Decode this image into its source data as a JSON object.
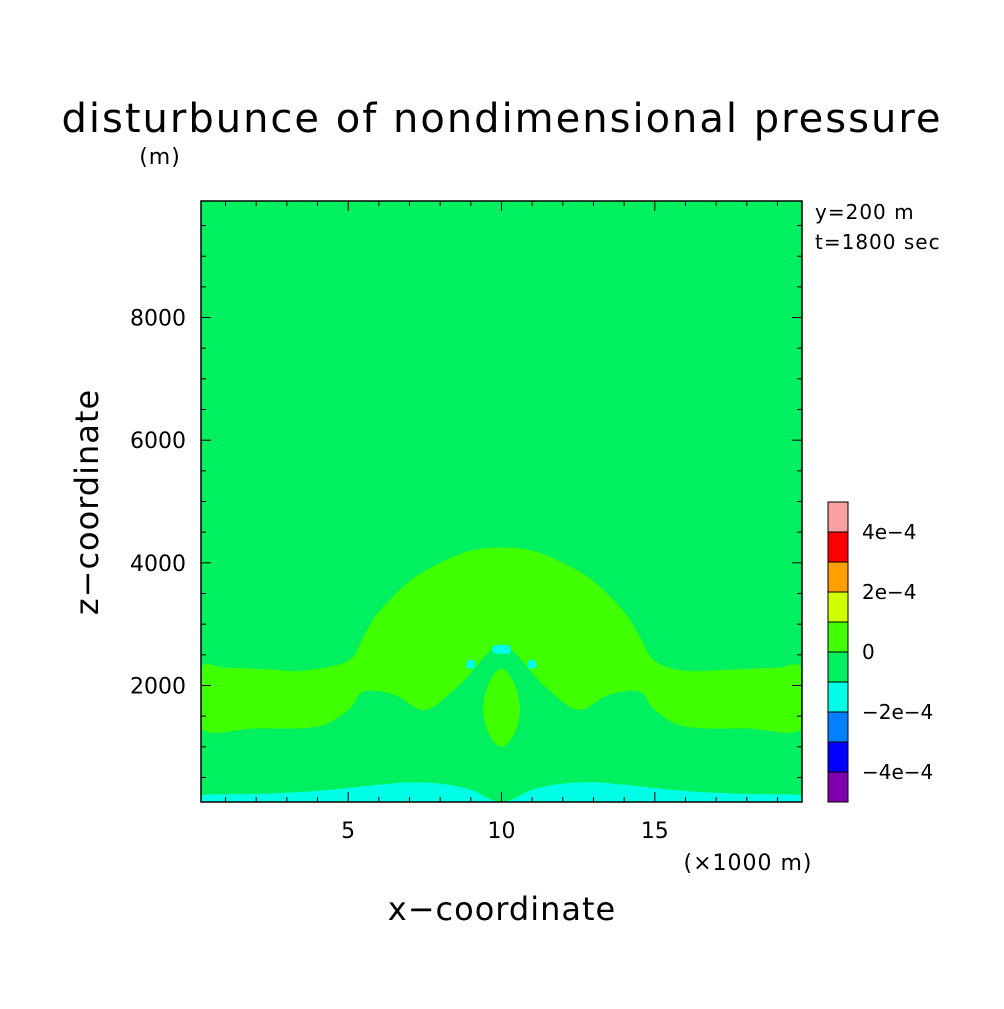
{
  "chart_data": {
    "type": "heatmap",
    "title": "disturbunce of nondimensional pressure",
    "yunit": "(m)",
    "xunit": "(×1000 m)",
    "info": [
      "y=200 m",
      "t=1800 sec"
    ],
    "xlabel": "x−coordinate",
    "ylabel": "z−coordinate",
    "xlim": [
      0.2,
      19.8
    ],
    "ylim": [
      100,
      9900
    ],
    "xticks": [
      5,
      10,
      15
    ],
    "xtick_labels": [
      "5",
      "10",
      "15"
    ],
    "yticks": [
      2000,
      4000,
      6000,
      8000
    ],
    "ytick_labels": [
      "2000",
      "4000",
      "6000",
      "8000"
    ],
    "colorbar": {
      "levels": [
        -0.0005,
        -0.0004,
        -0.0003,
        -0.0002,
        -0.0001,
        0,
        0.0001,
        0.0002,
        0.0003,
        0.0004,
        0.0005
      ],
      "colors": [
        "#7f00b0",
        "#0000ff",
        "#0080ff",
        "#00ffe6",
        "#00f060",
        "#40ff00",
        "#d0ff00",
        "#ffa000",
        "#ff0000",
        "#f8a0a0"
      ],
      "tick_labels": [
        {
          "level": -0.0004,
          "text": "−4e−4"
        },
        {
          "level": -0.0002,
          "text": "−2e−4"
        },
        {
          "level": 0,
          "text": "0"
        },
        {
          "level": 0.0002,
          "text": "2e−4"
        },
        {
          "level": 0.0004,
          "text": "4e−4"
        }
      ]
    },
    "background_color": "#00f060",
    "regions": [
      {
        "name": "positive-band",
        "range": [
          0,
          0.0001
        ],
        "color": "#40ff00",
        "outline": [
          [
            0.2,
            2270
          ],
          [
            1.0,
            2290
          ],
          [
            2.5,
            2260
          ],
          [
            3.5,
            2240
          ],
          [
            5.0,
            2400
          ],
          [
            5.5,
            2800
          ],
          [
            6.0,
            3200
          ],
          [
            7.0,
            3700
          ],
          [
            8.0,
            4000
          ],
          [
            9.0,
            4200
          ],
          [
            10.0,
            4250
          ],
          [
            11.0,
            4200
          ],
          [
            12.0,
            4000
          ],
          [
            13.0,
            3700
          ],
          [
            14.0,
            3200
          ],
          [
            14.5,
            2800
          ],
          [
            15.0,
            2400
          ],
          [
            16.0,
            2240
          ],
          [
            17.5,
            2260
          ],
          [
            19.0,
            2290
          ],
          [
            19.8,
            2270
          ],
          [
            19.8,
            1300
          ],
          [
            18.0,
            1300
          ],
          [
            16.0,
            1330
          ],
          [
            15.0,
            1600
          ],
          [
            14.5,
            1900
          ],
          [
            13.5,
            1850
          ],
          [
            12.5,
            1600
          ],
          [
            11.5,
            1950
          ],
          [
            11.0,
            2200
          ],
          [
            10.5,
            2500
          ],
          [
            10.0,
            2650
          ],
          [
            9.5,
            2500
          ],
          [
            9.0,
            2200
          ],
          [
            8.5,
            1950
          ],
          [
            7.5,
            1600
          ],
          [
            6.5,
            1850
          ],
          [
            5.5,
            1900
          ],
          [
            5.0,
            1600
          ],
          [
            4.0,
            1330
          ],
          [
            2.0,
            1300
          ],
          [
            0.2,
            1300
          ]
        ]
      },
      {
        "name": "positive-lobe",
        "range": [
          0,
          0.0001
        ],
        "color": "#40ff00",
        "outline": [
          [
            10.0,
            2270
          ],
          [
            10.4,
            2050
          ],
          [
            10.6,
            1600
          ],
          [
            10.4,
            1200
          ],
          [
            10.0,
            1000
          ],
          [
            9.6,
            1200
          ],
          [
            9.4,
            1600
          ],
          [
            9.6,
            2050
          ]
        ]
      },
      {
        "name": "negative-surface-layer",
        "range": [
          -0.0002,
          -0.0001
        ],
        "color": "#00ffe6",
        "outline": [
          [
            0.2,
            100
          ],
          [
            0.2,
            210
          ],
          [
            2.0,
            230
          ],
          [
            4.0,
            280
          ],
          [
            6.0,
            380
          ],
          [
            7.0,
            420
          ],
          [
            8.0,
            400
          ],
          [
            9.0,
            300
          ],
          [
            9.6,
            150
          ],
          [
            10.0,
            100
          ],
          [
            10.4,
            150
          ],
          [
            11.0,
            300
          ],
          [
            12.0,
            400
          ],
          [
            13.0,
            420
          ],
          [
            14.0,
            380
          ],
          [
            16.0,
            280
          ],
          [
            18.0,
            230
          ],
          [
            19.8,
            210
          ],
          [
            19.8,
            100
          ]
        ]
      },
      {
        "name": "negative-cell-top",
        "range": [
          -0.0002,
          -0.0001
        ],
        "color": "#00ffe6",
        "outline": [
          [
            9.75,
            2530
          ],
          [
            10.25,
            2530
          ],
          [
            10.25,
            2650
          ],
          [
            9.75,
            2650
          ]
        ]
      },
      {
        "name": "negative-cell-left",
        "range": [
          -0.0002,
          -0.0001
        ],
        "color": "#00ffe6",
        "outline": [
          [
            8.9,
            2280
          ],
          [
            9.1,
            2280
          ],
          [
            9.15,
            2370
          ],
          [
            9.05,
            2420
          ],
          [
            8.9,
            2400
          ],
          [
            8.85,
            2330
          ]
        ]
      },
      {
        "name": "negative-cell-right",
        "range": [
          -0.0002,
          -0.0001
        ],
        "color": "#00ffe6",
        "outline": [
          [
            10.9,
            2280
          ],
          [
            11.1,
            2280
          ],
          [
            11.15,
            2330
          ],
          [
            11.1,
            2400
          ],
          [
            10.95,
            2420
          ],
          [
            10.85,
            2370
          ]
        ]
      }
    ]
  }
}
